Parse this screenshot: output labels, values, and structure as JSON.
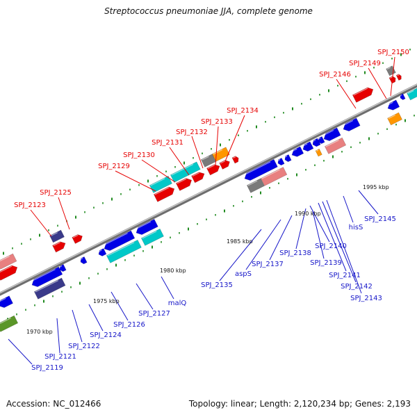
{
  "title": "Streptococcus pneumoniae JJA, complete genome",
  "footer": {
    "accession": "Accession: NC_012466",
    "summary": "Topology: linear; Length: 2,120,234 bp; Genes: 2,193"
  },
  "colors": {
    "backbone": "#8c8c8c",
    "tick": "#1f8a1f",
    "label_red": "#e60000",
    "label_blue": "#1515c8",
    "gene_blue": "#0000e6",
    "gene_red": "#e60000",
    "gene_cyan": "#00c8c8",
    "gene_pink": "#e88080",
    "gene_orange": "#ff9600",
    "gene_gray": "#7a7a7a",
    "gene_navy": "#3a3a8a",
    "gene_olive": "#5a9628"
  },
  "scale_labels": [
    "1970 kbp",
    "1975 kbp",
    "1980 kbp",
    "1985 kbp",
    "1990 kbp",
    "1995 kbp"
  ],
  "top_labels": [
    "SPJ_2123",
    "SPJ_2125",
    "SPJ_2129",
    "SPJ_2130",
    "SPJ_2131",
    "SPJ_2132",
    "SPJ_2133",
    "SPJ_2134",
    "SPJ_2146",
    "SPJ_2149",
    "SPJ_2150"
  ],
  "bottom_labels": [
    "SPJ_2119",
    "SPJ_2121",
    "SPJ_2122",
    "SPJ_2124",
    "SPJ_2126",
    "SPJ_2127",
    "malQ",
    "SPJ_2135",
    "aspS",
    "SPJ_2137",
    "SPJ_2138",
    "SPJ_2139",
    "SPJ_2140",
    "SPJ_2141",
    "SPJ_2142",
    "SPJ_2143",
    "hisS",
    "SPJ_2145"
  ]
}
